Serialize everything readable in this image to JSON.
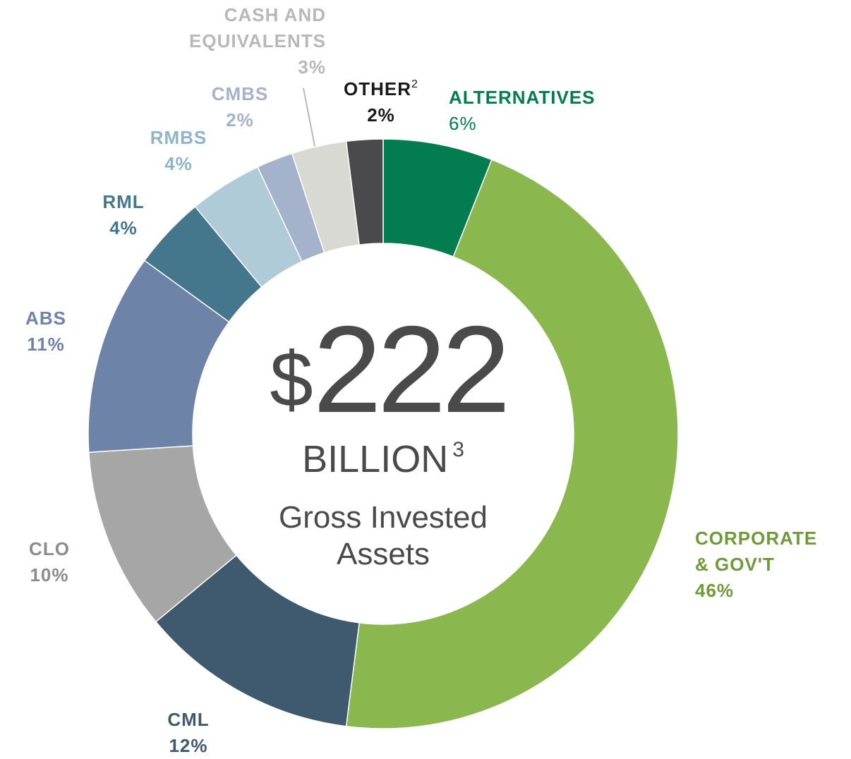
{
  "chart_data": {
    "type": "donut",
    "categories": [
      "ALTERNATIVES",
      "CORPORATE & GOV'T",
      "CML",
      "CLO",
      "ABS",
      "RML",
      "RMBS",
      "CMBS",
      "CASH AND EQUIVALENTS",
      "OTHER"
    ],
    "category_notes": [
      null,
      null,
      null,
      null,
      null,
      null,
      null,
      null,
      null,
      "2"
    ],
    "values": [
      6,
      46,
      12,
      10,
      11,
      4,
      4,
      2,
      3,
      2
    ],
    "value_labels": [
      "6%",
      "46%",
      "12%",
      "10%",
      "11%",
      "4%",
      "4%",
      "2%",
      "3%",
      "2%"
    ],
    "colors": [
      "#037d50",
      "#8ab84f",
      "#3f5a6e",
      "#a6a6a6",
      "#6d83a8",
      "#44778c",
      "#afcbd7",
      "#a4b3cb",
      "#d9d9d4",
      "#4a4a4c"
    ],
    "label_colors": [
      "#037d50",
      "#6e9a3a",
      "#3f5a6e",
      "#8c8c8c",
      "#6d83a8",
      "#44778c",
      "#8fb5c7",
      "#a4b3cb",
      "#b8b8b8",
      "#1a1a1a"
    ],
    "center": {
      "currency": "$",
      "amount": 222,
      "unit": "BILLION",
      "unit_note": "3",
      "caption": "Gross Invested Assets"
    }
  }
}
